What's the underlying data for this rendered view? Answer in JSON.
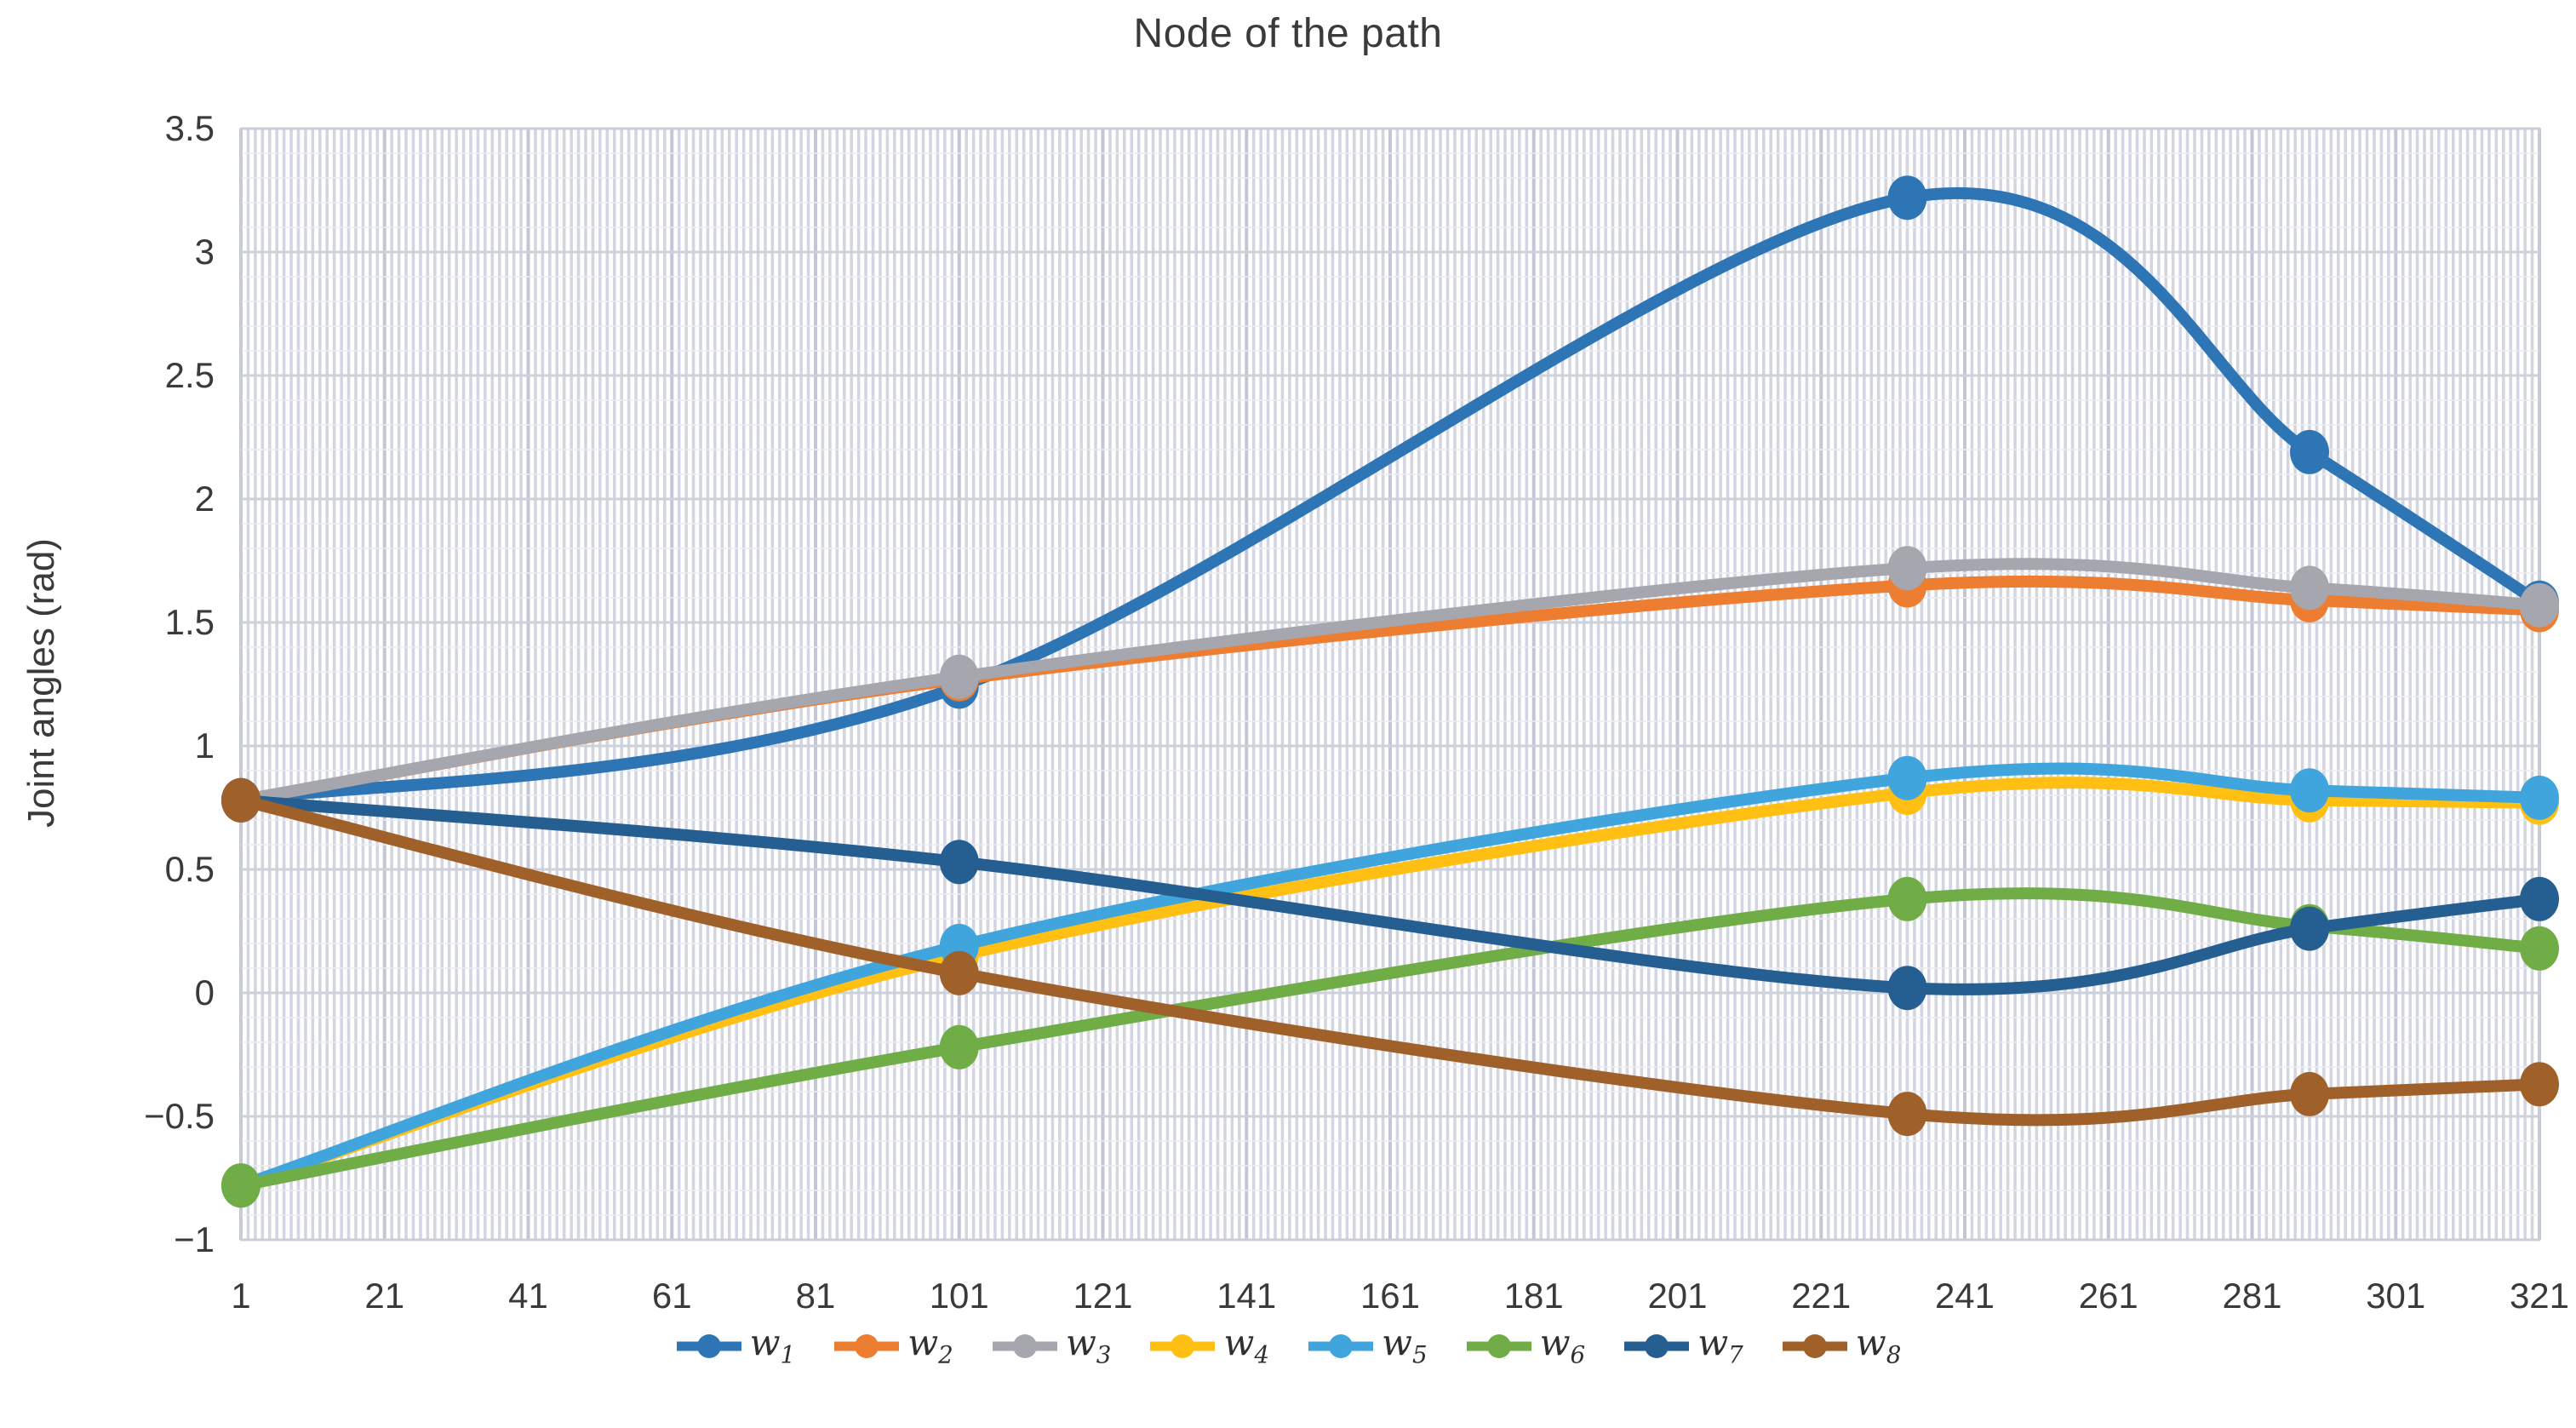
{
  "title": "Node of the path",
  "y_axis": {
    "label": "Joint angles (rad)"
  },
  "chart_data": {
    "type": "line",
    "title": "Node of the path",
    "xlabel": "",
    "ylabel": "Joint angles (rad)",
    "xlim": [
      1,
      321
    ],
    "ylim": [
      -1,
      3.5
    ],
    "grid": {
      "x_minor_step": 1,
      "x_major_step": 20,
      "y_minor_step": 0.1,
      "y_major_step": 0.5,
      "legend_position": "bottom"
    },
    "x_ticks": [
      1,
      21,
      41,
      61,
      81,
      101,
      121,
      141,
      161,
      181,
      201,
      221,
      241,
      261,
      281,
      301,
      321
    ],
    "y_ticks": [
      3.5,
      3,
      2.5,
      2,
      1.5,
      1,
      0.5,
      0,
      -0.5,
      -1
    ],
    "y_tick_labels": [
      "3.5",
      "3",
      "2.5",
      "2",
      "1.5",
      "1",
      "0.5",
      "0",
      "−0.5",
      "−1"
    ],
    "x": [
      1,
      101,
      233,
      289,
      321
    ],
    "series": [
      {
        "name": "w1",
        "label": {
          "base": "w",
          "sub": "1"
        },
        "color": "#2E75B6",
        "values": [
          0.78,
          1.24,
          3.22,
          2.19,
          1.58
        ]
      },
      {
        "name": "w2",
        "label": {
          "base": "w",
          "sub": "2"
        },
        "color": "#ED7D31",
        "values": [
          0.78,
          1.27,
          1.65,
          1.59,
          1.55
        ]
      },
      {
        "name": "w3",
        "label": {
          "base": "w",
          "sub": "3"
        },
        "color": "#A6A6AE",
        "values": [
          0.78,
          1.28,
          1.72,
          1.64,
          1.57
        ]
      },
      {
        "name": "w4",
        "label": {
          "base": "w",
          "sub": "4"
        },
        "color": "#FFC013",
        "values": [
          -0.78,
          0.15,
          0.81,
          0.78,
          0.77
        ]
      },
      {
        "name": "w5",
        "label": {
          "base": "w",
          "sub": "5"
        },
        "color": "#41A5DD",
        "values": [
          -0.78,
          0.19,
          0.87,
          0.82,
          0.79
        ]
      },
      {
        "name": "w6",
        "label": {
          "base": "w",
          "sub": "6"
        },
        "color": "#70AD47",
        "values": [
          -0.78,
          -0.22,
          0.38,
          0.27,
          0.18
        ]
      },
      {
        "name": "w7",
        "label": {
          "base": "w",
          "sub": "7"
        },
        "color": "#255E91",
        "values": [
          0.78,
          0.53,
          0.02,
          0.26,
          0.38
        ]
      },
      {
        "name": "w8",
        "label": {
          "base": "w",
          "sub": "8"
        },
        "color": "#A0602A",
        "values": [
          0.78,
          0.08,
          -0.49,
          -0.41,
          -0.37
        ]
      }
    ]
  }
}
